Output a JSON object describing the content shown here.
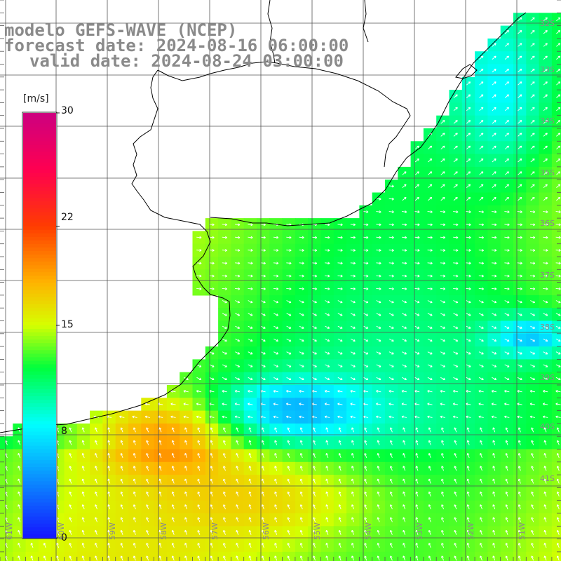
{
  "header": {
    "line1": "modelo GEFS-WAVE (NCEP)",
    "line2": "forecast date: 2024-08-16 06:00:00",
    "line3": "valid date: 2024-08-24 03:00:00"
  },
  "colorbar": {
    "unit": "[m/s]",
    "ticks": [
      "30",
      "22",
      "15",
      "8",
      "0"
    ],
    "tick_values": [
      30,
      22,
      15,
      8,
      0
    ],
    "min": 0,
    "max": 30,
    "stops": [
      {
        "v": 0,
        "color": "#1515ff"
      },
      {
        "v": 8,
        "color": "#00ffff"
      },
      {
        "v": 12,
        "color": "#00ff3c"
      },
      {
        "v": 15,
        "color": "#d6ff00"
      },
      {
        "v": 18,
        "color": "#ffb400"
      },
      {
        "v": 22,
        "color": "#ff3c00"
      },
      {
        "v": 26,
        "color": "#ff0050"
      },
      {
        "v": 30,
        "color": "#cc0080"
      }
    ]
  },
  "lat_labels": [
    "32S",
    "33S",
    "34S",
    "35S",
    "36S",
    "37S",
    "38S",
    "39S",
    "40S",
    "41S"
  ],
  "lon_labels": [
    "61W",
    "60W",
    "59W",
    "58W",
    "57W",
    "56W",
    "55W",
    "54W",
    "53W",
    "52W",
    "51W"
  ],
  "colors": {
    "land": "#ffffff",
    "coast": "#000000",
    "grid": "#555555",
    "arrow": "#ffffff",
    "label": "#8a8a8a"
  }
}
